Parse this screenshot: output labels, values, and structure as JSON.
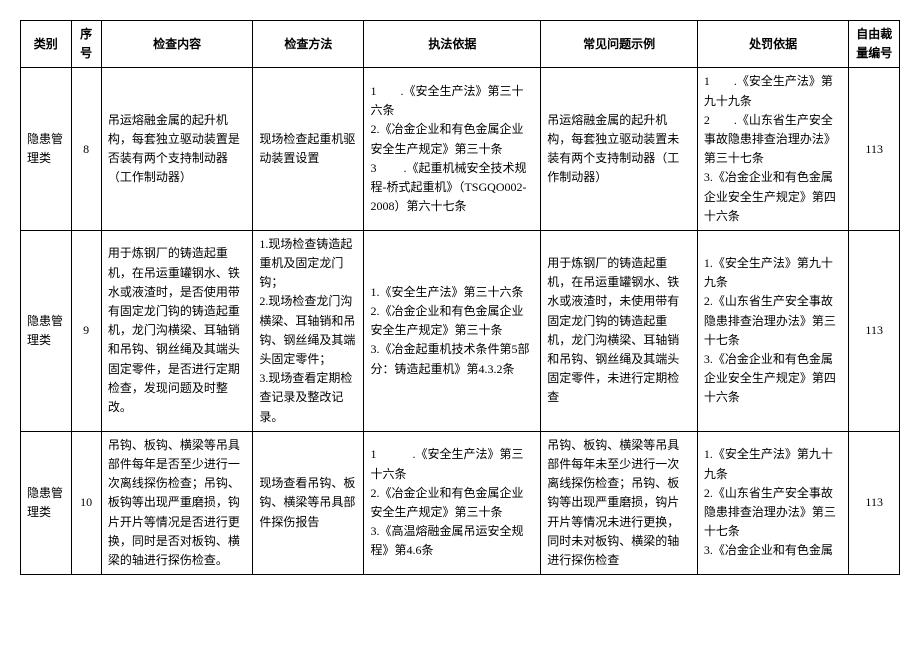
{
  "headers": {
    "category": "类别",
    "seq": "序号",
    "content": "检查内容",
    "method": "检查方法",
    "basis": "执法依据",
    "example": "常见问题示例",
    "penalty": "处罚依据",
    "code": "自由裁量编号"
  },
  "rows": [
    {
      "category": "隐患管理类",
      "seq": "8",
      "content": "吊运熔融金属的起升机构，每套独立驱动装置是否装有两个支持制动器（工作制动器）",
      "method": "现场检查起重机驱动装置设置",
      "basis": "1　　.《安全生产法》第三十六条\n2.《冶金企业和有色金属企业安全生产规定》第三十条\n3　　 .《起重机械安全技术规程-桥式起重机》（TSGQO002-2008）第六十七条",
      "example": "吊运熔融金属的起升机构，每套独立驱动装置未装有两个支持制动器（工作制动器）",
      "penalty": "1　　.《安全生产法》第九十九条\n2　　.《山东省生产安全事故隐患排查治理办法》第三十七条\n3.《冶金企业和有色金属企业安全生产规定》第四十六条",
      "code": "113"
    },
    {
      "category": "隐患管理类",
      "seq": "9",
      "content": "用于炼钢厂的铸造起重机，在吊运重罐钢水、铁水或液渣时，是否使用带有固定龙门钩的铸造起重机，龙门沟横梁、耳轴销和吊钩、钢丝绳及其端头固定零件，是否进行定期检查，发现问题及时整改。",
      "method": "1.现场检查铸造起重机及固定龙门钩；\n2.现场检查龙门沟横梁、耳轴销和吊钩、钢丝绳及其端头固定零件；\n3.现场查看定期检查记录及整改记录。",
      "basis": "1.《安全生产法》第三十六条\n2.《冶金企业和有色金属企业安全生产规定》第三十条\n3.《冶金起重机技术条件第5部分：铸造起重机》第4.3.2条",
      "example": "用于炼钢厂的铸造起重机，在吊运重罐钢水、铁水或液渣时，未使用带有固定龙门钩的铸造起重机，龙门沟横梁、耳轴销和吊钩、钢丝绳及其端头固定零件，未进行定期检查",
      "penalty": "1.《安全生产法》第九十九条\n2.《山东省生产安全事故隐患排查治理办法》第三十七条\n3.《冶金企业和有色金属企业安全生产规定》第四十六条",
      "code": "113"
    },
    {
      "category": "隐患管理类",
      "seq": "10",
      "content": "吊钩、板钩、横梁等吊具部件每年是否至少进行一次离线探伤检查；吊钩、板钩等出现严重磨损，钩片开片等情况是否进行更换，同时是否对板钩、横梁的轴进行探伤检查。",
      "method": "现场查看吊钩、板钩、横梁等吊具部件探伤报告",
      "basis": "1　　　.《安全生产法》第三十六条\n2.《冶金企业和有色金属企业安全生产规定》第三十条\n3.《高温熔融金属吊运安全规程》第4.6条",
      "example": "吊钩、板钩、横梁等吊具部件每年未至少进行一次离线探伤检查；吊钩、板钩等出现严重磨损，钩片开片等情况未进行更换，同时未对板钩、横梁的轴进行探伤检查",
      "penalty": "1.《安全生产法》第九十九条\n2.《山东省生产安全事故隐患排查治理办法》第三十七条\n3.《冶金企业和有色金属",
      "code": "113"
    }
  ]
}
